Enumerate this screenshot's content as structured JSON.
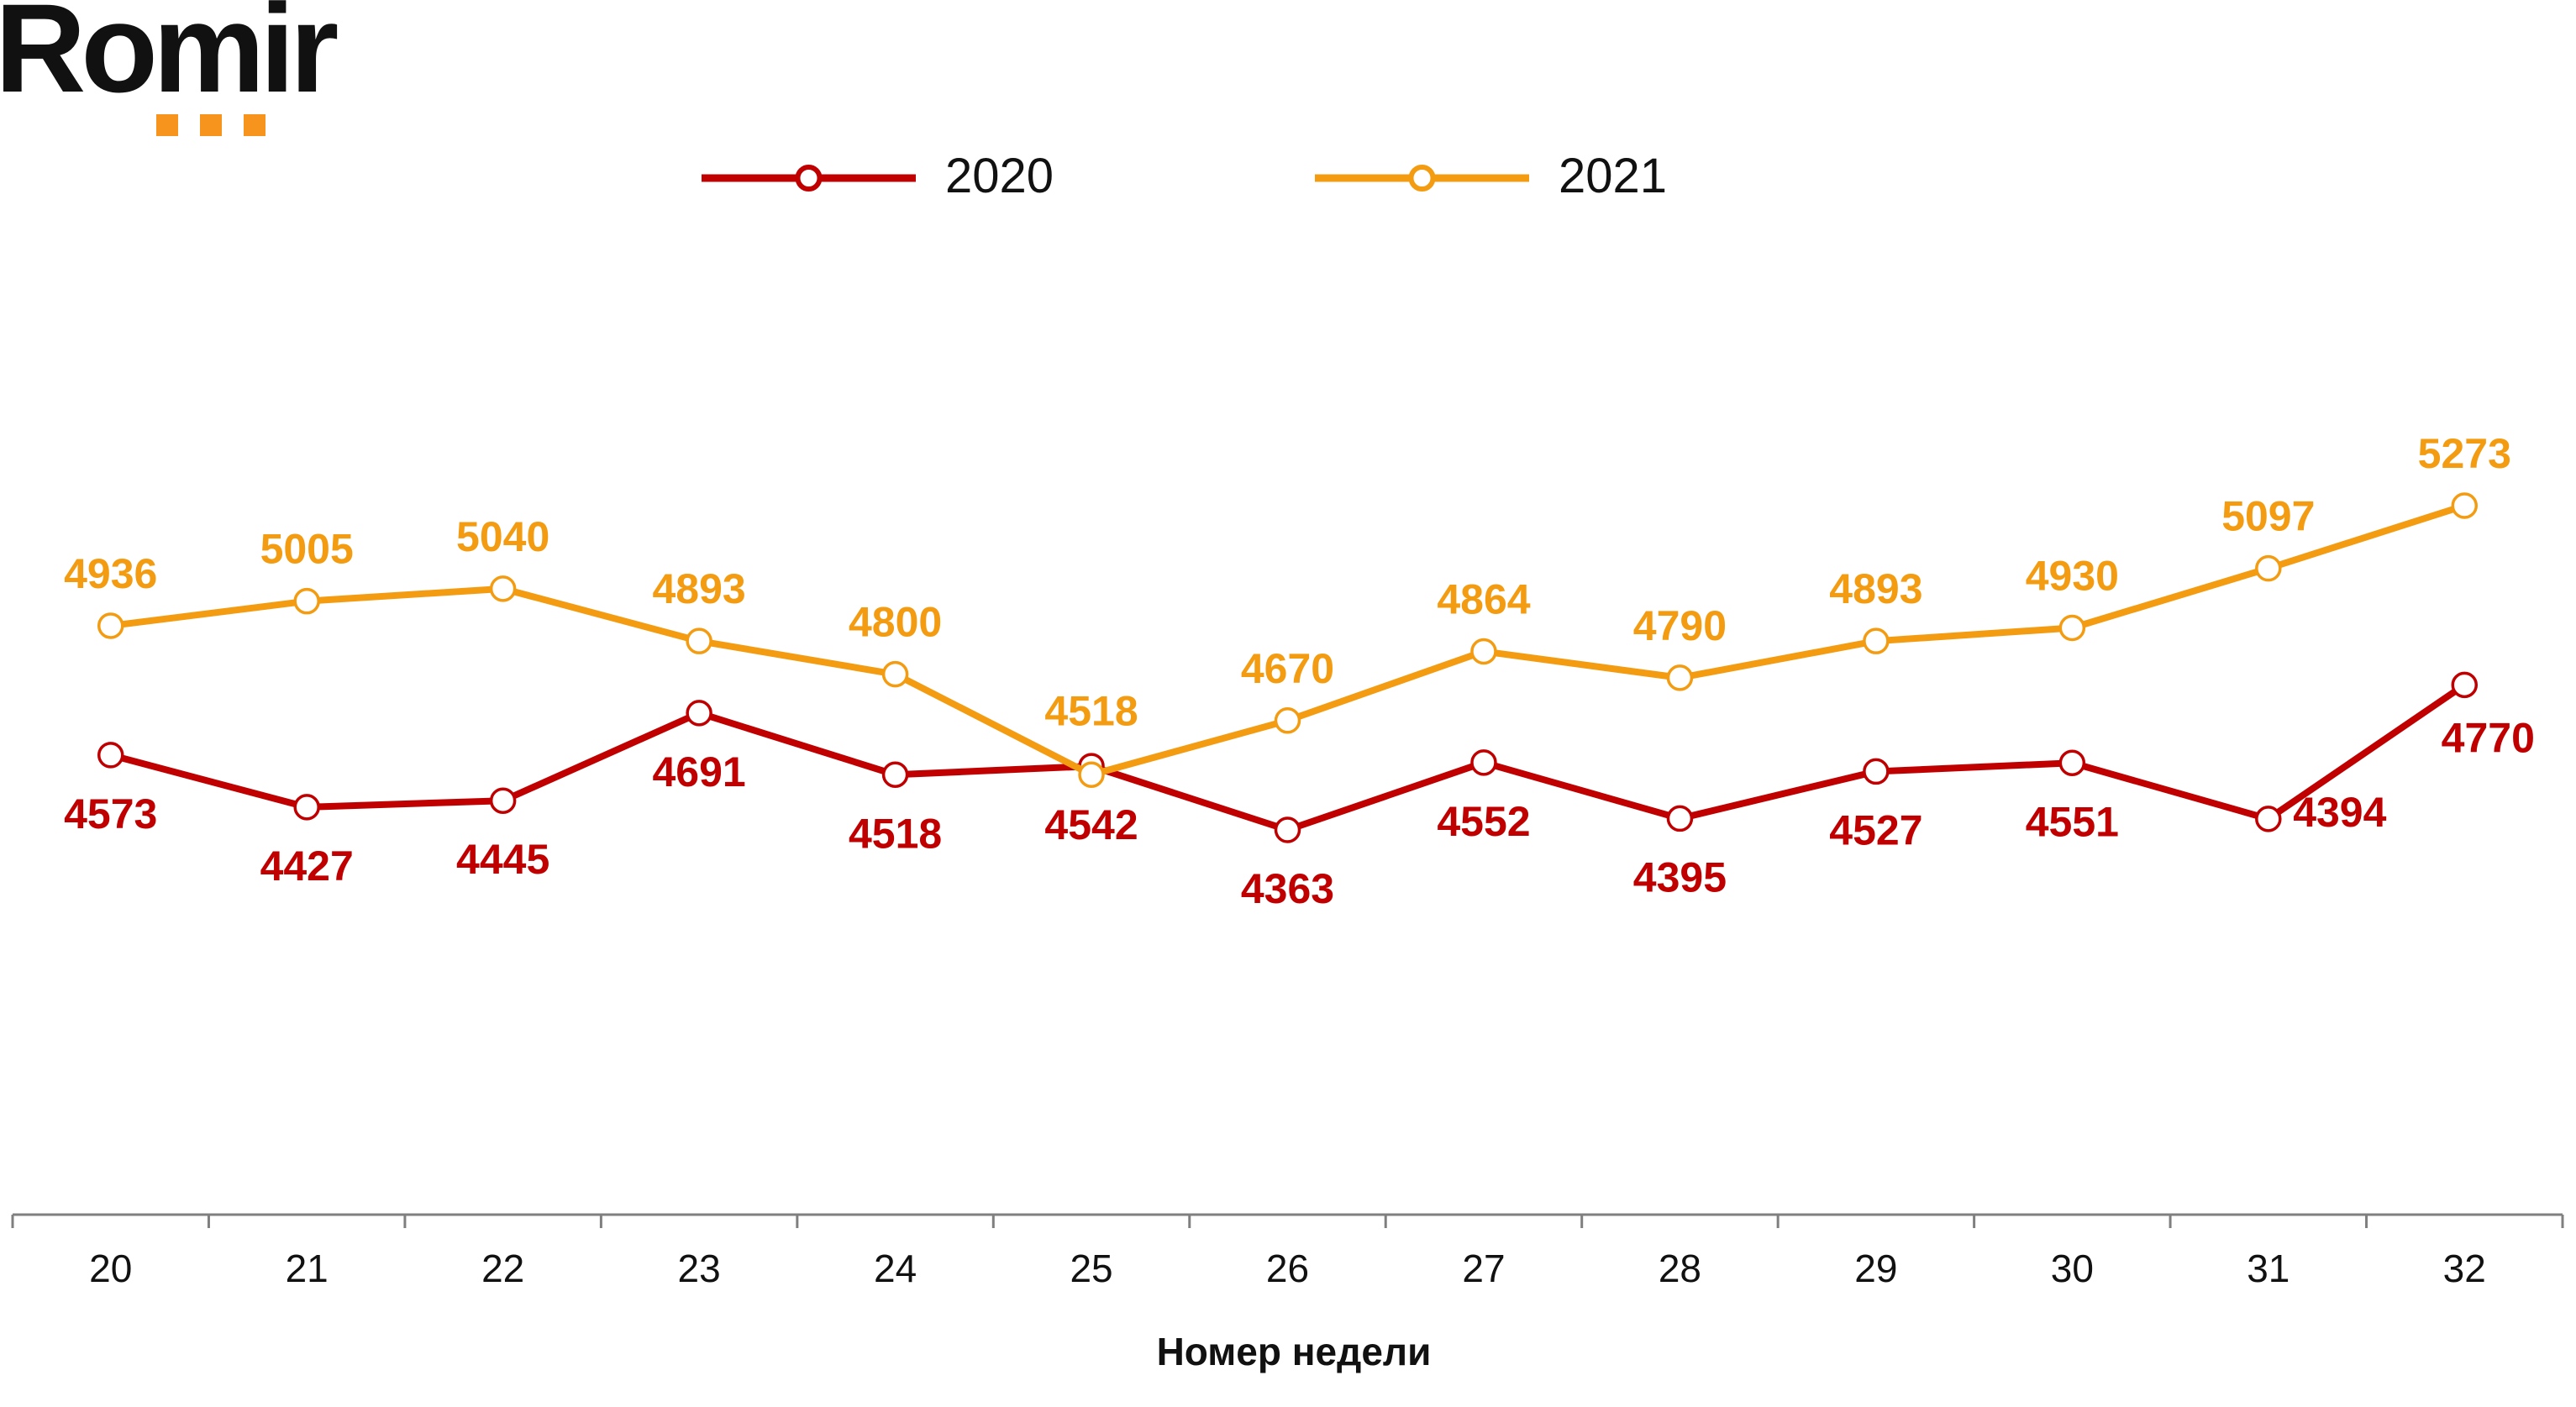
{
  "logo": {
    "text": "Romir",
    "dot_color": "#F7941D"
  },
  "chart_data": {
    "type": "line",
    "xlabel": "Номер недели",
    "ylabel": "",
    "categories": [
      "20",
      "21",
      "22",
      "23",
      "24",
      "25",
      "26",
      "27",
      "28",
      "29",
      "30",
      "31",
      "32"
    ],
    "series": [
      {
        "name": "2020",
        "color": "#C00000",
        "values": [
          4573,
          4427,
          4445,
          4691,
          4518,
          4542,
          4363,
          4552,
          4395,
          4527,
          4551,
          4394,
          4770
        ],
        "label_position": "below"
      },
      {
        "name": "2021",
        "color": "#F39C12",
        "values": [
          4936,
          5005,
          5040,
          4893,
          4800,
          4518,
          4670,
          4864,
          4790,
          4893,
          4930,
          5097,
          5273
        ],
        "label_position": "above"
      }
    ],
    "legend_position": "top-center",
    "grid": false,
    "y_axis_visible": false
  }
}
